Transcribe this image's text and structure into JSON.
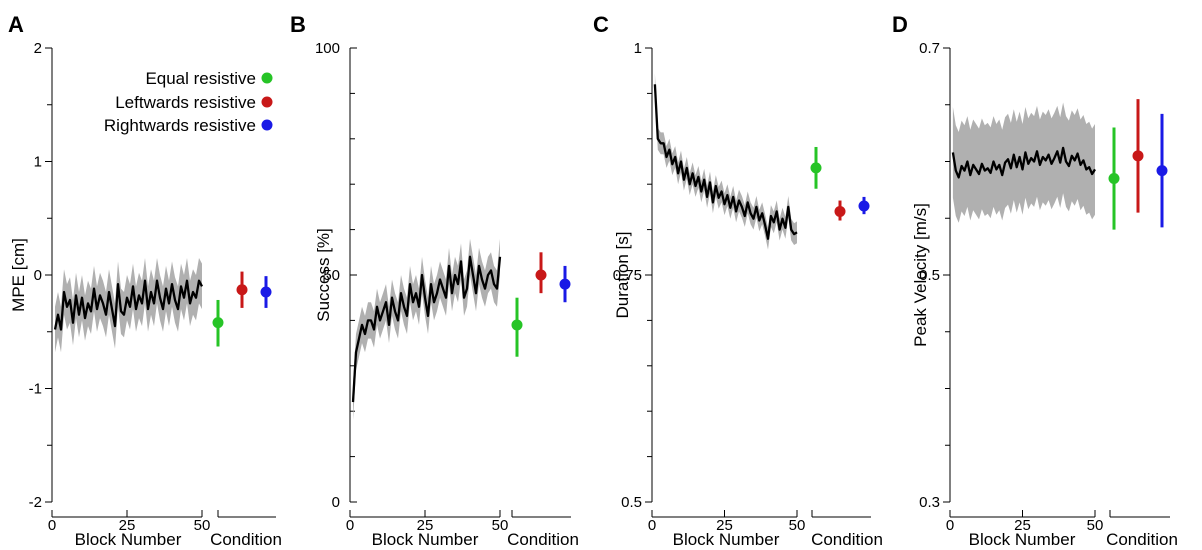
{
  "chart_data": [
    {
      "panel_label": "A",
      "type": "line",
      "ylabel": "MPE [cm]",
      "xlabel": "Block Number",
      "condition_label": "Condition",
      "ylim": [
        -2,
        2
      ],
      "yticks_major": [
        -2,
        -1,
        0,
        1,
        2
      ],
      "ytick_labels": [
        "-2",
        "-1",
        "0",
        "1",
        "2"
      ],
      "yticks_minor": [
        -1.5,
        -0.5,
        0.5,
        1.5
      ],
      "xlim": [
        0,
        50
      ],
      "xticks": [
        0,
        25,
        50
      ],
      "xtick_labels": [
        "0",
        "25",
        "50"
      ],
      "series": [
        {
          "x": [
            1,
            2,
            3,
            4,
            5,
            6,
            7,
            8,
            9,
            10,
            11,
            12,
            13,
            14,
            15,
            16,
            17,
            18,
            19,
            20,
            21,
            22,
            23,
            24,
            25,
            26,
            27,
            28,
            29,
            30,
            31,
            32,
            33,
            34,
            35,
            36,
            37,
            38,
            39,
            40,
            41,
            42,
            43,
            44,
            45,
            46,
            47,
            48,
            49,
            50
          ],
          "y": [
            -0.48,
            -0.35,
            -0.48,
            -0.15,
            -0.28,
            -0.22,
            -0.42,
            -0.18,
            -0.35,
            -0.2,
            -0.38,
            -0.25,
            -0.32,
            -0.12,
            -0.3,
            -0.18,
            -0.25,
            -0.35,
            -0.15,
            -0.3,
            -0.45,
            -0.08,
            -0.32,
            -0.35,
            -0.2,
            -0.28,
            -0.1,
            -0.3,
            -0.18,
            -0.25,
            -0.05,
            -0.3,
            -0.15,
            -0.25,
            -0.05,
            -0.2,
            -0.3,
            -0.12,
            -0.25,
            -0.08,
            -0.22,
            -0.3,
            -0.1,
            -0.2,
            -0.05,
            -0.25,
            -0.15,
            -0.2,
            -0.05,
            -0.1
          ],
          "sd": 0.2
        }
      ],
      "conditions": [
        {
          "color": "#26c426",
          "mean": -0.42,
          "ci": [
            -0.63,
            -0.22
          ]
        },
        {
          "color": "#c81818",
          "mean": -0.13,
          "ci": [
            -0.29,
            0.03
          ]
        },
        {
          "color": "#1a1ae6",
          "mean": -0.15,
          "ci": [
            -0.29,
            -0.01
          ]
        }
      ],
      "legend": [
        {
          "label": "Equal resistive",
          "color": "#26c426"
        },
        {
          "label": "Leftwards resistive",
          "color": "#c81818"
        },
        {
          "label": "Rightwards resistive",
          "color": "#1a1ae6"
        }
      ]
    },
    {
      "panel_label": "B",
      "type": "line",
      "ylabel": "Success [%]",
      "xlabel": "Block Number",
      "condition_label": "Condition",
      "ylim": [
        0,
        100
      ],
      "yticks_major": [
        0,
        50,
        100
      ],
      "ytick_labels": [
        "0",
        "50",
        "100"
      ],
      "yticks_minor": [
        10,
        20,
        30,
        40,
        60,
        70,
        80,
        90
      ],
      "xlim": [
        0,
        50
      ],
      "xticks": [
        0,
        25,
        50
      ],
      "xtick_labels": [
        "0",
        "25",
        "50"
      ],
      "series": [
        {
          "x": [
            1,
            2,
            3,
            4,
            5,
            6,
            7,
            8,
            9,
            10,
            11,
            12,
            13,
            14,
            15,
            16,
            17,
            18,
            19,
            20,
            21,
            22,
            23,
            24,
            25,
            26,
            27,
            28,
            29,
            30,
            31,
            32,
            33,
            34,
            35,
            36,
            37,
            38,
            39,
            40,
            41,
            42,
            43,
            44,
            45,
            46,
            47,
            48,
            49,
            50
          ],
          "y": [
            22,
            33,
            36,
            39,
            37,
            40,
            40,
            38,
            43,
            40,
            42,
            44,
            39,
            45,
            42,
            40,
            46,
            43,
            41,
            48,
            44,
            46,
            43,
            50,
            45,
            41,
            48,
            44,
            46,
            49,
            47,
            45,
            52,
            46,
            50,
            48,
            53,
            45,
            47,
            54,
            50,
            46,
            52,
            49,
            47,
            50,
            51,
            48,
            47,
            54
          ],
          "sd": 4
        }
      ],
      "conditions": [
        {
          "color": "#26c426",
          "mean": 39,
          "ci": [
            32,
            45
          ]
        },
        {
          "color": "#c81818",
          "mean": 50,
          "ci": [
            46,
            55
          ]
        },
        {
          "color": "#1a1ae6",
          "mean": 48,
          "ci": [
            44,
            52
          ]
        }
      ]
    },
    {
      "panel_label": "C",
      "type": "line",
      "ylabel": "Duration [s]",
      "xlabel": "Block Number",
      "condition_label": "Condition",
      "ylim": [
        0.5,
        1
      ],
      "yticks_major": [
        0.5,
        0.75,
        1
      ],
      "ytick_labels": [
        "0.5",
        "0.75",
        "1"
      ],
      "yticks_minor": [
        0.55,
        0.6,
        0.65,
        0.7,
        0.8,
        0.85,
        0.9,
        0.95
      ],
      "xlim": [
        0,
        50
      ],
      "xticks": [
        0,
        25,
        50
      ],
      "xtick_labels": [
        "0",
        "25",
        "50"
      ],
      "series": [
        {
          "x": [
            1,
            2,
            3,
            4,
            5,
            6,
            7,
            8,
            9,
            10,
            11,
            12,
            13,
            14,
            15,
            16,
            17,
            18,
            19,
            20,
            21,
            22,
            23,
            24,
            25,
            26,
            27,
            28,
            29,
            30,
            31,
            32,
            33,
            34,
            35,
            36,
            37,
            38,
            39,
            40,
            41,
            42,
            43,
            44,
            45,
            46,
            47,
            48,
            49,
            50
          ],
          "y": [
            0.96,
            0.9,
            0.895,
            0.895,
            0.88,
            0.888,
            0.872,
            0.88,
            0.862,
            0.875,
            0.855,
            0.868,
            0.85,
            0.862,
            0.848,
            0.858,
            0.842,
            0.855,
            0.836,
            0.852,
            0.83,
            0.848,
            0.835,
            0.842,
            0.828,
            0.838,
            0.824,
            0.836,
            0.82,
            0.832,
            0.825,
            0.815,
            0.83,
            0.818,
            0.812,
            0.825,
            0.81,
            0.818,
            0.805,
            0.79,
            0.815,
            0.808,
            0.82,
            0.8,
            0.812,
            0.802,
            0.825,
            0.8,
            0.795,
            0.797
          ],
          "sd": 0.012
        }
      ],
      "conditions": [
        {
          "color": "#26c426",
          "mean": 0.868,
          "ci": [
            0.845,
            0.891
          ]
        },
        {
          "color": "#c81818",
          "mean": 0.82,
          "ci": [
            0.81,
            0.832
          ]
        },
        {
          "color": "#1a1ae6",
          "mean": 0.826,
          "ci": [
            0.817,
            0.836
          ]
        }
      ]
    },
    {
      "panel_label": "D",
      "type": "line",
      "ylabel": "Peak Velocity [m/s]",
      "xlabel": "Block Number",
      "condition_label": "Condition",
      "ylim": [
        0.3,
        0.7
      ],
      "yticks_major": [
        0.3,
        0.5,
        0.7
      ],
      "ytick_labels": [
        "0.3",
        "0.5",
        "0.7"
      ],
      "yticks_minor": [
        0.35,
        0.4,
        0.45,
        0.55,
        0.6,
        0.65
      ],
      "xlim": [
        0,
        50
      ],
      "xticks": [
        0,
        25,
        50
      ],
      "xtick_labels": [
        "0",
        "25",
        "50"
      ],
      "series": [
        {
          "x": [
            1,
            2,
            3,
            4,
            5,
            6,
            7,
            8,
            9,
            10,
            11,
            12,
            13,
            14,
            15,
            16,
            17,
            18,
            19,
            20,
            21,
            22,
            23,
            24,
            25,
            26,
            27,
            28,
            29,
            30,
            31,
            32,
            33,
            34,
            35,
            36,
            37,
            38,
            39,
            40,
            41,
            42,
            43,
            44,
            45,
            46,
            47,
            48,
            49,
            50
          ],
          "y": [
            0.608,
            0.592,
            0.586,
            0.596,
            0.592,
            0.6,
            0.588,
            0.597,
            0.593,
            0.589,
            0.598,
            0.592,
            0.594,
            0.59,
            0.6,
            0.593,
            0.597,
            0.588,
            0.599,
            0.602,
            0.594,
            0.606,
            0.595,
            0.604,
            0.593,
            0.608,
            0.598,
            0.603,
            0.6,
            0.609,
            0.597,
            0.604,
            0.601,
            0.606,
            0.598,
            0.603,
            0.609,
            0.599,
            0.612,
            0.6,
            0.596,
            0.605,
            0.601,
            0.607,
            0.597,
            0.601,
            0.593,
            0.595,
            0.589,
            0.593
          ],
          "sd": 0.04
        }
      ],
      "conditions": [
        {
          "color": "#26c426",
          "mean": 0.585,
          "ci": [
            0.54,
            0.63
          ]
        },
        {
          "color": "#c81818",
          "mean": 0.605,
          "ci": [
            0.555,
            0.655
          ]
        },
        {
          "color": "#1a1ae6",
          "mean": 0.592,
          "ci": [
            0.542,
            0.642
          ]
        }
      ]
    }
  ]
}
